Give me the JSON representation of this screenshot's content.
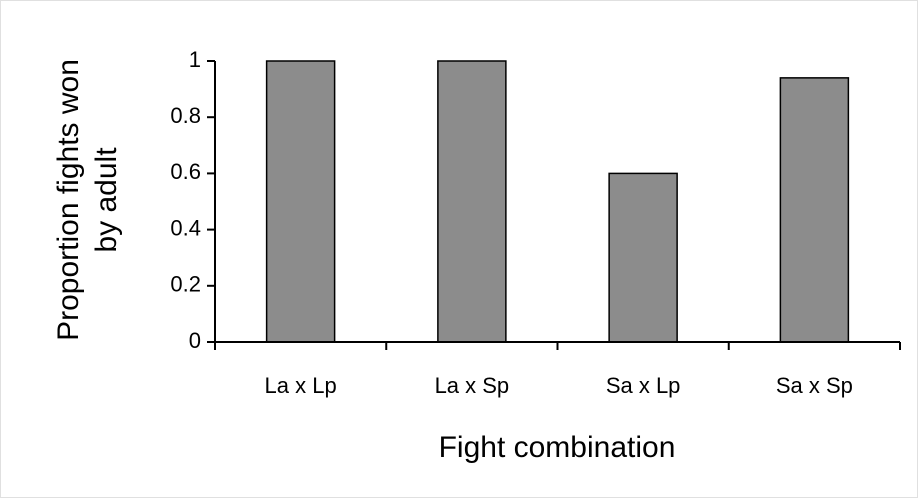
{
  "chart_data": {
    "type": "bar",
    "ylabel": [
      "Proportion fights won",
      "by adult"
    ],
    "xlabel": "Fight combination",
    "categories": [
      "La x Lp",
      "La x Sp",
      "Sa x Lp",
      "Sa x Sp"
    ],
    "values": [
      1,
      1,
      0.6,
      0.94
    ],
    "color": "#8c8c8c",
    "ylim": [
      0,
      1
    ],
    "yticks": [
      0,
      0.2,
      0.4,
      0.6,
      0.8,
      1
    ],
    "grid": false
  }
}
